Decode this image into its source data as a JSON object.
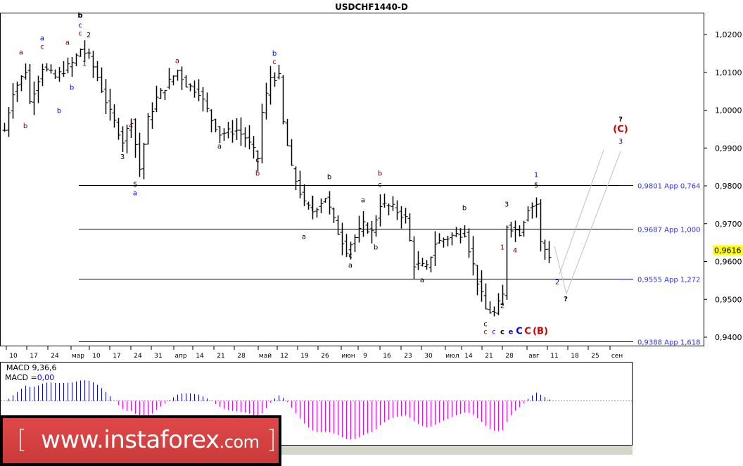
{
  "window": {
    "title": "USDCHF1440-D"
  },
  "colors": {
    "bull_bar": "#000000",
    "level_line": "#0000b0",
    "level_label": "#3030ff",
    "macd_positive": "#0000ff",
    "macd_negative": "#ff00ff",
    "price_marker": "#ffff00",
    "label_darkred": "#800000",
    "label_blue": "#0000ff",
    "label_red": "#cc0000",
    "projection": "#c0c0c0"
  },
  "price_axis": {
    "ticks": [
      "1,0200",
      "1,0100",
      "1,0000",
      "0,9900",
      "0,9800",
      "0,9700",
      "0,9600",
      "0,9500",
      "0,9400"
    ],
    "tick_values": [
      1.02,
      1.01,
      1.0,
      0.99,
      0.98,
      0.97,
      0.96,
      0.95,
      0.94
    ],
    "current_price": "0,9616",
    "current_value": 0.9616
  },
  "date_axis": {
    "labels": [
      "10",
      "17",
      "24",
      "мар",
      "10",
      "17",
      "24",
      "31",
      "апр",
      "14",
      "21",
      "28",
      "май",
      "12",
      "19",
      "26",
      "июн",
      "9",
      "16",
      "23",
      "30",
      "июл",
      "14",
      "21",
      "28",
      "авг",
      "11",
      "18",
      "25",
      "сен"
    ]
  },
  "levels": [
    {
      "price": 0.9801,
      "label": "0,9801 App 0,764"
    },
    {
      "price": 0.9687,
      "label": "0,9687 App 1,000"
    },
    {
      "price": 0.9555,
      "label": "0,9555 App 1,272"
    },
    {
      "price": 0.9388,
      "label": "0,9388 App 1,618"
    }
  ],
  "price_path": [
    {
      "bar": 0,
      "price": 0.9947
    },
    {
      "bar": 2,
      "price": 1.0049
    },
    {
      "bar": 5,
      "price": 1.0105
    },
    {
      "bar": 6,
      "price": 1.0021
    },
    {
      "bar": 9,
      "price": 1.0114
    },
    {
      "bar": 12,
      "price": 1.0087
    },
    {
      "bar": 16,
      "price": 1.0124
    },
    {
      "bar": 18,
      "price": 1.0161
    },
    {
      "bar": 20,
      "price": 1.0142
    },
    {
      "bar": 22,
      "price": 1.0087
    },
    {
      "bar": 25,
      "price": 0.9993
    },
    {
      "bar": 28,
      "price": 0.9919
    },
    {
      "bar": 30,
      "price": 0.9975
    },
    {
      "bar": 32,
      "price": 0.9845
    },
    {
      "bar": 34,
      "price": 0.9975
    },
    {
      "bar": 36,
      "price": 1.0031
    },
    {
      "bar": 41,
      "price": 1.0105
    },
    {
      "bar": 43,
      "price": 1.0068
    },
    {
      "bar": 46,
      "price": 1.0049
    },
    {
      "bar": 49,
      "price": 0.9975
    },
    {
      "bar": 51,
      "price": 0.9938
    },
    {
      "bar": 55,
      "price": 0.9947
    },
    {
      "bar": 57,
      "price": 0.9928
    },
    {
      "bar": 60,
      "price": 0.9873
    },
    {
      "bar": 61,
      "price": 0.9993
    },
    {
      "bar": 63,
      "price": 1.0087
    },
    {
      "bar": 65,
      "price": 1.0087
    },
    {
      "bar": 66,
      "price": 0.9966
    },
    {
      "bar": 68,
      "price": 0.9845
    },
    {
      "bar": 71,
      "price": 0.9752
    },
    {
      "bar": 73,
      "price": 0.9733
    },
    {
      "bar": 76,
      "price": 0.977
    },
    {
      "bar": 79,
      "price": 0.9677
    },
    {
      "bar": 81,
      "price": 0.9631
    },
    {
      "bar": 85,
      "price": 0.9696
    },
    {
      "bar": 87,
      "price": 0.9677
    },
    {
      "bar": 89,
      "price": 0.9752
    },
    {
      "bar": 92,
      "price": 0.9742
    },
    {
      "bar": 95,
      "price": 0.9714
    },
    {
      "bar": 97,
      "price": 0.9593
    },
    {
      "bar": 100,
      "price": 0.9584
    },
    {
      "bar": 102,
      "price": 0.9649
    },
    {
      "bar": 106,
      "price": 0.9668
    },
    {
      "bar": 109,
      "price": 0.9677
    },
    {
      "bar": 112,
      "price": 0.9547
    },
    {
      "bar": 114,
      "price": 0.9473
    },
    {
      "bar": 116,
      "price": 0.9463
    },
    {
      "bar": 118,
      "price": 0.951
    },
    {
      "bar": 119,
      "price": 0.9696
    },
    {
      "bar": 122,
      "price": 0.9677
    },
    {
      "bar": 124,
      "price": 0.9742
    },
    {
      "bar": 126,
      "price": 0.9752
    },
    {
      "bar": 127,
      "price": 0.9649
    },
    {
      "bar": 129,
      "price": 0.9616
    }
  ],
  "wave_labels": [
    {
      "text": "b",
      "color": "#000000",
      "bold": true,
      "bar": 18,
      "price": 1.0245
    },
    {
      "text": "c",
      "color": "#0000ff",
      "bar": 18,
      "price": 1.0219
    },
    {
      "text": "c",
      "color": "#800000",
      "bar": 18,
      "price": 1.0197
    },
    {
      "text": "2",
      "color": "#000000",
      "bar": 20,
      "price": 1.0193
    },
    {
      "text": "1",
      "color": "#800000",
      "bar": 19,
      "price": 1.0117
    },
    {
      "text": "a",
      "color": "#800000",
      "bar": 4,
      "price": 1.0147
    },
    {
      "text": "a",
      "color": "#0000ff",
      "bar": 9,
      "price": 1.0184
    },
    {
      "text": "c",
      "color": "#800000",
      "bar": 9,
      "price": 1.0166
    },
    {
      "text": "a",
      "color": "#800000",
      "bar": 15,
      "price": 1.0173
    },
    {
      "text": "b",
      "color": "#0000ff",
      "bar": 13,
      "price": 0.9993
    },
    {
      "text": "b",
      "color": "#800000",
      "bar": 5,
      "price": 0.9953
    },
    {
      "text": "b",
      "color": "#0000ff",
      "bar": 16,
      "price": 1.0054
    },
    {
      "text": "4",
      "color": "#800000",
      "bar": 30,
      "price": 0.9953
    },
    {
      "text": "3",
      "color": "#000000",
      "bar": 28,
      "price": 0.9871
    },
    {
      "text": "5",
      "color": "#000000",
      "bar": 31,
      "price": 0.9797
    },
    {
      "text": "a",
      "color": "#0000ff",
      "bar": 31,
      "price": 0.9775
    },
    {
      "text": "a",
      "color": "#800000",
      "bar": 41,
      "price": 1.0125
    },
    {
      "text": "a",
      "color": "#000000",
      "bar": 51,
      "price": 0.9899
    },
    {
      "text": "b",
      "color": "#0000ff",
      "bar": 64,
      "price": 1.0144
    },
    {
      "text": "c",
      "color": "#800000",
      "bar": 64,
      "price": 1.0122
    },
    {
      "text": "c",
      "color": "#000000",
      "bar": 60,
      "price": 0.9862
    },
    {
      "text": "b",
      "color": "#800000",
      "bar": 60,
      "price": 0.9827
    },
    {
      "text": "b",
      "color": "#000000",
      "bar": 77,
      "price": 0.9818
    },
    {
      "text": "a",
      "color": "#000000",
      "bar": 71,
      "price": 0.966
    },
    {
      "text": "b",
      "color": "#800000",
      "bar": 89,
      "price": 0.9827
    },
    {
      "text": "c",
      "color": "#000000",
      "bar": 89,
      "price": 0.9797
    },
    {
      "text": "a",
      "color": "#000000",
      "bar": 85,
      "price": 0.9756
    },
    {
      "text": "b",
      "color": "#000000",
      "bar": 88,
      "price": 0.9632
    },
    {
      "text": "c",
      "color": "#000000",
      "bar": 82,
      "price": 0.961
    },
    {
      "text": "a",
      "color": "#000000",
      "bar": 82,
      "price": 0.9584
    },
    {
      "text": "a",
      "color": "#000000",
      "bar": 99,
      "price": 0.9545
    },
    {
      "text": "b",
      "color": "#000000",
      "bar": 109,
      "price": 0.9736
    },
    {
      "text": "1",
      "color": "#0000ff",
      "bar": 126,
      "price": 0.9823
    },
    {
      "text": "5",
      "color": "#000000",
      "bar": 126,
      "price": 0.9795
    },
    {
      "text": "3",
      "color": "#000000",
      "bar": 119,
      "price": 0.9745
    },
    {
      "text": "1",
      "color": "#800000",
      "bar": 118,
      "price": 0.9632
    },
    {
      "text": "4",
      "color": "#800000",
      "bar": 121,
      "price": 0.9623
    },
    {
      "text": "2",
      "color": "#000000",
      "bar": 118,
      "price": 0.9477
    },
    {
      "text": "c",
      "color": "#000000",
      "bar": 114,
      "price": 0.9429
    },
    {
      "text": "c",
      "color": "#800000",
      "bar": 114,
      "price": 0.9408
    },
    {
      "text": "c",
      "color": "#0000ff",
      "bar": 116,
      "price": 0.9408
    },
    {
      "text": "c",
      "color": "#000000",
      "bold": true,
      "bar": 118,
      "price": 0.9408
    },
    {
      "text": "e",
      "color": "#0000ff",
      "bold": true,
      "bar": 120,
      "price": 0.9408
    },
    {
      "text": "C",
      "color": "#0000ff",
      "bold": true,
      "big": true,
      "bar": 122,
      "price": 0.9408
    },
    {
      "text": "C",
      "color": "#cc0000",
      "bold": true,
      "big": true,
      "bar": 124,
      "price": 0.9408
    },
    {
      "text": "(B)",
      "color": "#cc0000",
      "bold": true,
      "big": true,
      "bar": 127,
      "price": 0.9408
    },
    {
      "text": "2",
      "color": "#0000ff",
      "bar": 131,
      "price": 0.954
    },
    {
      "text": "?",
      "color": "#000000",
      "bold": true,
      "bar": 133,
      "price": 0.9495
    },
    {
      "text": "?",
      "color": "#000000",
      "bold": true,
      "bar": 146,
      "price": 0.997
    },
    {
      "text": "(C)",
      "color": "#cc0000",
      "bold": true,
      "big": true,
      "bar": 146,
      "price": 0.9942
    },
    {
      "text": "3",
      "color": "#0000ff",
      "bar": 146,
      "price": 0.9912
    }
  ],
  "macd": {
    "label": "MACD 9,36,6",
    "value_prefix": "MACD =",
    "value": "0,00",
    "params": [
      9,
      36,
      6
    ]
  },
  "watermark": {
    "text": "www.instaforex.com"
  }
}
